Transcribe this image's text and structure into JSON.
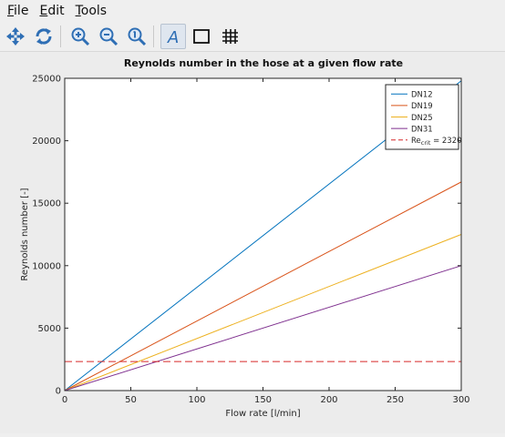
{
  "menubar": {
    "items": [
      {
        "first": "F",
        "rest": "ile"
      },
      {
        "first": "E",
        "rest": "dit"
      },
      {
        "first": "T",
        "rest": "ools"
      }
    ]
  },
  "toolbar": {
    "icons": [
      "pan-icon",
      "rotate-icon",
      "zoom-in-icon",
      "zoom-out-icon",
      "zoom-reset-icon",
      "text-tool-icon",
      "box-toggle-icon",
      "grid-toggle-icon"
    ]
  },
  "chart_data": {
    "type": "line",
    "title": "Reynolds number in the hose at a given flow rate",
    "xlabel": "Flow rate [l/min]",
    "ylabel": "Reynolds number [-]",
    "xlim": [
      0,
      300
    ],
    "ylim": [
      0,
      25000
    ],
    "xticks": [
      0,
      50,
      100,
      150,
      200,
      250,
      300
    ],
    "yticks": [
      0,
      5000,
      10000,
      15000,
      20000,
      25000
    ],
    "grid": false,
    "legend_position": "top-right",
    "series": [
      {
        "name": "DN12",
        "color": "#0072bd",
        "style": "solid",
        "x": [
          0,
          300
        ],
        "y": [
          0,
          24800
        ]
      },
      {
        "name": "DN19",
        "color": "#d95319",
        "style": "solid",
        "x": [
          0,
          300
        ],
        "y": [
          0,
          16700
        ]
      },
      {
        "name": "DN25",
        "color": "#edb120",
        "style": "solid",
        "x": [
          0,
          300
        ],
        "y": [
          0,
          12500
        ]
      },
      {
        "name": "DN31",
        "color": "#7e2f8e",
        "style": "solid",
        "x": [
          0,
          300
        ],
        "y": [
          0,
          10000
        ]
      },
      {
        "name": "Re_crit = 2320",
        "label_main": "Re",
        "label_sub": "crit",
        "label_tail": " = 2320",
        "color": "#d62728",
        "style": "dashed",
        "x": [
          0,
          300
        ],
        "y": [
          2320,
          2320
        ]
      }
    ]
  }
}
